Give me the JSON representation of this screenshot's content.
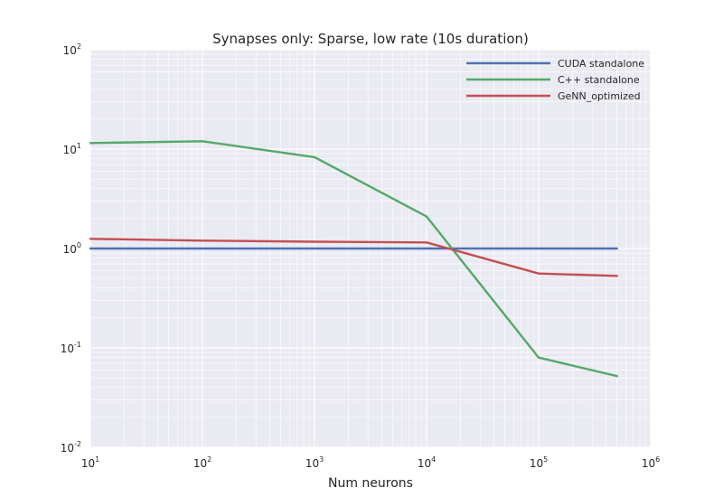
{
  "chart_data": {
    "type": "line",
    "title": "Synapses only: Sparse, low rate (10s duration)",
    "xlabel": "Num neurons",
    "ylabel": "",
    "xscale": "log",
    "yscale": "log",
    "xlim": [
      10,
      1000000
    ],
    "ylim": [
      0.01,
      100
    ],
    "grid": true,
    "legend_position": "top-right",
    "x_tick_labels": [
      {
        "base": "10",
        "exp": "1",
        "value": 10
      },
      {
        "base": "10",
        "exp": "2",
        "value": 100
      },
      {
        "base": "10",
        "exp": "3",
        "value": 1000
      },
      {
        "base": "10",
        "exp": "4",
        "value": 10000
      },
      {
        "base": "10",
        "exp": "5",
        "value": 100000
      },
      {
        "base": "10",
        "exp": "6",
        "value": 1000000
      }
    ],
    "y_tick_labels": [
      {
        "base": "10",
        "exp": "-2",
        "value": 0.01
      },
      {
        "base": "10",
        "exp": "-1",
        "value": 0.1
      },
      {
        "base": "10",
        "exp": "0",
        "value": 1
      },
      {
        "base": "10",
        "exp": "1",
        "value": 10
      },
      {
        "base": "10",
        "exp": "2",
        "value": 100
      }
    ],
    "series": [
      {
        "name": "CUDA standalone",
        "color": "#4c72b0",
        "x": [
          10,
          100,
          1000,
          10000,
          100000,
          500000
        ],
        "y": [
          1.0,
          1.0,
          1.0,
          1.0,
          1.0,
          1.0
        ]
      },
      {
        "name": "C++ standalone",
        "color": "#55a868",
        "x": [
          10,
          100,
          1000,
          10000,
          100000,
          500000
        ],
        "y": [
          11.5,
          12.0,
          8.3,
          2.1,
          0.08,
          0.052
        ]
      },
      {
        "name": "GeNN_optimized",
        "color": "#c44e52",
        "x": [
          10,
          100,
          1000,
          10000,
          100000,
          500000
        ],
        "y": [
          1.25,
          1.2,
          1.17,
          1.15,
          0.56,
          0.53
        ]
      }
    ]
  }
}
